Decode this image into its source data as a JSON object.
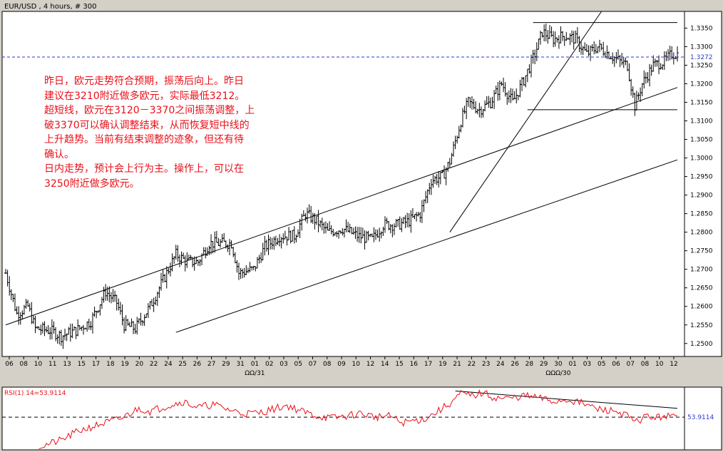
{
  "window": {
    "title": "EUR/USD , 4 hours, # 300"
  },
  "note": {
    "text": "昨日，欧元走势符合预期，振荡后向上。昨日\n建议在3210附近做多欧元，实际最低3212。\n超短线，欧元在3120－3370之间振荡调整，上\n破3370可以确认调整结束，从而恢复短中线的\n上升趋势。当前有结束调整的迹象，但还有待\n确认。\n日内走势，预计会上行为主。操作上，可以在\n3250附近做多欧元。"
  },
  "chart_data": [
    {
      "type": "ohlc",
      "title": "EUR/USD , 4 hours, # 300",
      "y_tick_labels": [
        "1.2500",
        "1.2550",
        "1.2600",
        "1.2650",
        "1.2700",
        "1.2750",
        "1.2800",
        "1.2850",
        "1.2900",
        "1.2950",
        "1.3000",
        "1.3050",
        "1.3100",
        "1.3150",
        "1.3200",
        "1.3250",
        "1.3300",
        "1.3350"
      ],
      "ylim": [
        1.2465,
        1.3395
      ],
      "x_tick_labels": [
        "06",
        "08",
        "10",
        "11",
        "13",
        "15",
        "17",
        "18",
        "19",
        "20",
        "22",
        "24",
        "25",
        "26",
        "27",
        "29",
        "31",
        "01",
        "02",
        "03",
        "05",
        "07",
        "08",
        "09",
        "10",
        "12",
        "14",
        "15",
        "16",
        "17",
        "19",
        "21",
        "22",
        "23",
        "24",
        "26",
        "28",
        "29",
        "30",
        "01",
        "03",
        "05",
        "06",
        "07",
        "08",
        "10",
        "12"
      ],
      "x_sublabels": [
        "ΩΩ/31",
        "ΩΩΩ/30"
      ],
      "last_price_label": "1.3272",
      "last_price": 1.3272,
      "anchor_closes": [
        [
          0,
          1.269
        ],
        [
          6,
          1.258
        ],
        [
          12,
          1.26
        ],
        [
          16,
          1.254
        ],
        [
          24,
          1.2535
        ],
        [
          30,
          1.252
        ],
        [
          38,
          1.2535
        ],
        [
          46,
          1.256
        ],
        [
          54,
          1.264
        ],
        [
          60,
          1.261
        ],
        [
          64,
          1.255
        ],
        [
          70,
          1.254
        ],
        [
          78,
          1.26
        ],
        [
          86,
          1.268
        ],
        [
          92,
          1.274
        ],
        [
          98,
          1.272
        ],
        [
          104,
          1.272
        ],
        [
          110,
          1.277
        ],
        [
          116,
          1.277
        ],
        [
          122,
          1.277
        ],
        [
          126,
          1.269
        ],
        [
          134,
          1.27
        ],
        [
          140,
          1.276
        ],
        [
          148,
          1.279
        ],
        [
          156,
          1.279
        ],
        [
          162,
          1.285
        ],
        [
          168,
          1.283
        ],
        [
          174,
          1.28
        ],
        [
          182,
          1.281
        ],
        [
          190,
          1.279
        ],
        [
          198,
          1.278
        ],
        [
          204,
          1.282
        ],
        [
          212,
          1.282
        ],
        [
          218,
          1.283
        ],
        [
          224,
          1.285
        ],
        [
          230,
          1.294
        ],
        [
          236,
          1.295
        ],
        [
          240,
          1.299
        ],
        [
          246,
          1.31
        ],
        [
          250,
          1.315
        ],
        [
          256,
          1.313
        ],
        [
          262,
          1.315
        ],
        [
          268,
          1.32
        ],
        [
          274,
          1.315
        ],
        [
          280,
          1.321
        ],
        [
          286,
          1.328
        ],
        [
          290,
          1.334
        ],
        [
          296,
          1.332
        ],
        [
          302,
          1.333
        ],
        [
          308,
          1.332
        ],
        [
          314,
          1.328
        ],
        [
          320,
          1.33
        ],
        [
          326,
          1.328
        ],
        [
          332,
          1.326
        ],
        [
          336,
          1.325
        ],
        [
          340,
          1.314
        ],
        [
          344,
          1.32
        ],
        [
          350,
          1.325
        ],
        [
          356,
          1.326
        ],
        [
          360,
          1.328
        ]
      ],
      "trendlines": [
        {
          "from": [
            0,
            1.255
          ],
          "to": [
            363,
            1.319
          ]
        },
        {
          "from": [
            92,
            1.253
          ],
          "to": [
            363,
            1.2995
          ]
        },
        {
          "from": [
            240,
            1.28
          ],
          "to": [
            322,
            1.3395
          ]
        },
        {
          "from": [
            285,
            1.3365
          ],
          "to": [
            363,
            1.3365
          ]
        },
        {
          "from": [
            282,
            1.313
          ],
          "to": [
            363,
            1.313
          ]
        }
      ]
    },
    {
      "type": "line",
      "title": "RSI(1) 14=53.9114",
      "value_label": "53.9114",
      "value": 53.9114,
      "reference_level": 53.9114,
      "ylim": [
        20,
        85
      ],
      "anchor_values": [
        [
          18,
          23
        ],
        [
          30,
          30
        ],
        [
          40,
          40
        ],
        [
          52,
          47
        ],
        [
          62,
          52
        ],
        [
          72,
          63
        ],
        [
          78,
          60
        ],
        [
          88,
          66
        ],
        [
          96,
          70
        ],
        [
          104,
          64
        ],
        [
          112,
          67
        ],
        [
          120,
          62
        ],
        [
          128,
          58
        ],
        [
          136,
          58
        ],
        [
          144,
          62
        ],
        [
          152,
          66
        ],
        [
          160,
          60
        ],
        [
          168,
          55
        ],
        [
          176,
          53
        ],
        [
          184,
          55
        ],
        [
          192,
          58
        ],
        [
          200,
          54
        ],
        [
          208,
          55
        ],
        [
          214,
          48
        ],
        [
          220,
          50
        ],
        [
          226,
          52
        ],
        [
          232,
          58
        ],
        [
          240,
          68
        ],
        [
          246,
          78
        ],
        [
          252,
          76
        ],
        [
          258,
          79
        ],
        [
          264,
          74
        ],
        [
          272,
          73
        ],
        [
          280,
          76
        ],
        [
          288,
          74
        ],
        [
          296,
          70
        ],
        [
          304,
          72
        ],
        [
          312,
          68
        ],
        [
          320,
          62
        ],
        [
          330,
          60
        ],
        [
          336,
          55
        ],
        [
          340,
          48
        ],
        [
          346,
          55
        ],
        [
          352,
          53
        ],
        [
          356,
          56
        ],
        [
          360,
          54
        ]
      ],
      "trendline": {
        "from": [
          243,
          81
        ],
        "to": [
          363,
          63
        ]
      }
    }
  ]
}
